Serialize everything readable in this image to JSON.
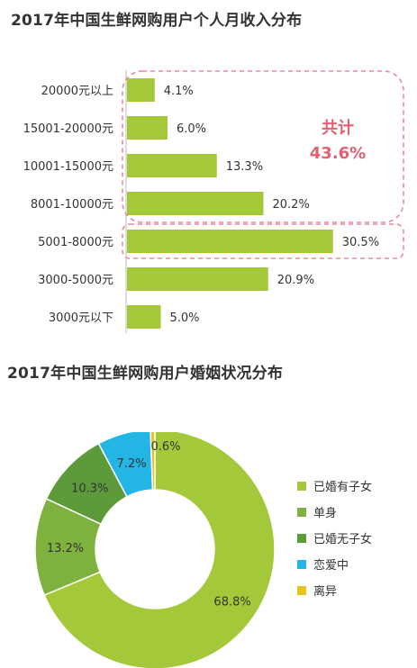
{
  "chart_data": [
    {
      "type": "bar",
      "orientation": "horizontal",
      "title": "2017年中国生鲜网购用户个人月收入分布",
      "categories": [
        "20000元以上",
        "15001-20000元",
        "10001-15000元",
        "8001-10000元",
        "5001-8000元",
        "3000-5000元",
        "3000元以下"
      ],
      "values": [
        4.1,
        6.0,
        13.3,
        20.2,
        30.5,
        20.9,
        5.0
      ],
      "value_labels": [
        "4.1%",
        "6.0%",
        "13.3%",
        "20.2%",
        "30.5%",
        "20.9%",
        "5.0%"
      ],
      "xlim": [
        0,
        40
      ],
      "bar_color": "#a3c93a",
      "annotation": {
        "line1": "共计",
        "line2": "43.6%",
        "color": "#e35f72",
        "groups": [
          [
            0,
            3
          ],
          [
            4,
            4
          ]
        ]
      }
    },
    {
      "type": "pie",
      "style": "donut",
      "title": "2017年中国生鲜网购用户婚姻状况分布",
      "labels": [
        "已婚有子女",
        "单身",
        "已婚无子女",
        "恋爱中",
        "离异"
      ],
      "values": [
        68.8,
        13.2,
        10.3,
        7.2,
        0.6
      ],
      "value_labels": [
        "68.8%",
        "13.2%",
        "10.3%",
        "7.2%",
        "0.6%"
      ],
      "colors": [
        "#a3c93a",
        "#7fb13e",
        "#5c9a3a",
        "#23b5e3",
        "#e8c51f"
      ],
      "legend": "right"
    }
  ]
}
